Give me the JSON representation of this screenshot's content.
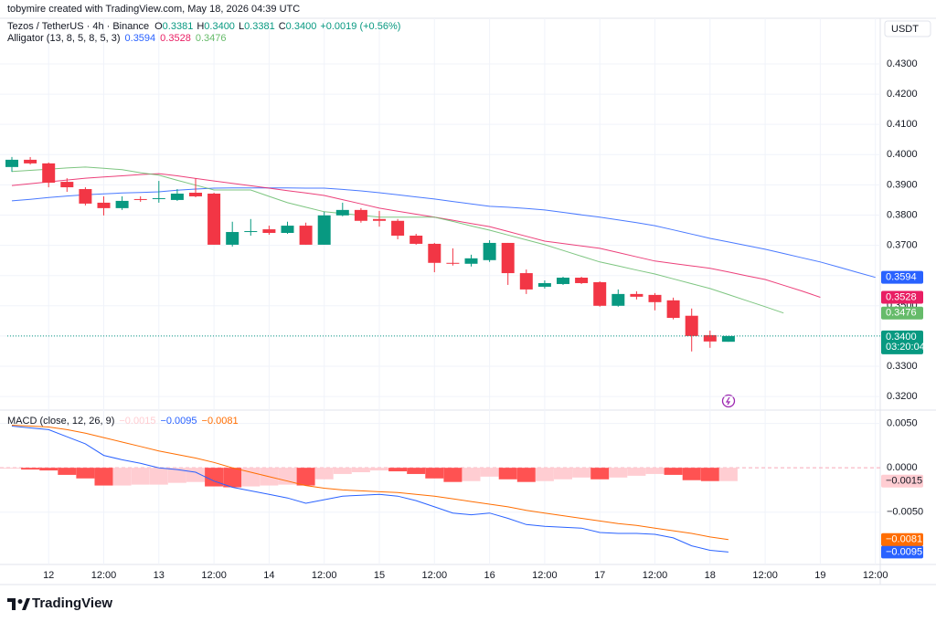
{
  "credit": "tobymire created with TradingView.com, May 18, 2026 04:39 UTC",
  "brand": "TradingView",
  "chart_data": [
    {
      "type": "candlestick",
      "title": "Tezos / TetherUS · 4h · Binance",
      "ohlc_legend": [
        {
          "label": "O",
          "value": "0.3381"
        },
        {
          "label": "H",
          "value": "0.3400"
        },
        {
          "label": "L",
          "value": "0.3381"
        },
        {
          "label": "C",
          "value": "0.3400"
        }
      ],
      "change": "+0.0019 (+0.56%)",
      "indicator": "Alligator (13, 8, 5, 8, 5, 3)",
      "currency": "USDT",
      "categories": [
        null,
        null,
        "12",
        null,
        null,
        "12:00",
        null,
        null,
        "13",
        null,
        null,
        "12:00",
        null,
        null,
        "14",
        null,
        null,
        "12:00",
        null,
        null,
        "15",
        null,
        null,
        "12:00",
        null,
        null,
        "16",
        null,
        null,
        "12:00",
        null,
        null,
        "17",
        null,
        null,
        "12:00",
        null,
        null,
        "18",
        null,
        null,
        "12:00",
        null,
        null,
        "19",
        null,
        null,
        "12:00"
      ],
      "open": [
        0.3959,
        0.3983,
        0.3971,
        0.391,
        0.3886,
        0.3841,
        0.3823,
        0.3853,
        0.3853,
        0.385,
        0.3874,
        0.3871,
        0.3702,
        0.3744,
        0.3753,
        0.3741,
        0.3765,
        0.3702,
        0.3799,
        0.3817,
        0.3787,
        0.3781,
        0.3732,
        0.3705,
        0.3642,
        0.3639,
        0.3651,
        0.3708,
        0.3608,
        0.3563,
        0.3572,
        0.3593,
        0.3578,
        0.35,
        0.3539,
        0.3536,
        0.3518,
        0.3467,
        0.3403,
        0.3381,
        null,
        null,
        null,
        null,
        null,
        null,
        null,
        null
      ],
      "high": [
        0.3992,
        0.3992,
        0.3974,
        0.3922,
        0.3892,
        0.3862,
        0.3862,
        0.3862,
        0.3913,
        0.3886,
        0.3922,
        0.3874,
        0.3778,
        0.3787,
        0.3765,
        0.3778,
        0.3775,
        0.3811,
        0.3841,
        0.3823,
        0.3814,
        0.3787,
        0.3738,
        0.3708,
        0.369,
        0.3669,
        0.3717,
        0.3708,
        0.362,
        0.3584,
        0.3596,
        0.3596,
        0.3581,
        0.3554,
        0.3548,
        0.3542,
        0.3527,
        0.3491,
        0.3418,
        0.34,
        null,
        null,
        null,
        null,
        null,
        null,
        null,
        null
      ],
      "low": [
        0.3943,
        0.3967,
        0.3892,
        0.3877,
        0.3832,
        0.3799,
        0.3817,
        0.3844,
        0.3841,
        0.3847,
        0.3859,
        0.3702,
        0.3696,
        0.3732,
        0.3735,
        0.3738,
        0.3702,
        0.3702,
        0.3796,
        0.3775,
        0.3762,
        0.372,
        0.3702,
        0.3611,
        0.3633,
        0.363,
        0.3645,
        0.3569,
        0.3539,
        0.3557,
        0.3569,
        0.3572,
        0.3497,
        0.3497,
        0.3521,
        0.3485,
        0.3455,
        0.3349,
        0.3361,
        0.3381,
        null,
        null,
        null,
        null,
        null,
        null,
        null,
        null
      ],
      "close": [
        0.3983,
        0.3971,
        0.3907,
        0.3892,
        0.3838,
        0.3823,
        0.3847,
        0.385,
        0.3856,
        0.3871,
        0.3862,
        0.3702,
        0.3744,
        0.3747,
        0.3741,
        0.3765,
        0.3702,
        0.3799,
        0.3817,
        0.3781,
        0.3781,
        0.3732,
        0.3705,
        0.3642,
        0.3639,
        0.3657,
        0.3708,
        0.3608,
        0.3554,
        0.3575,
        0.3593,
        0.3575,
        0.35,
        0.3539,
        0.353,
        0.3512,
        0.346,
        0.34,
        0.3382,
        0.34,
        null,
        null,
        null,
        null,
        null,
        null,
        null,
        null
      ],
      "up_color": "#089981",
      "down_color": "#f23645",
      "last_price_label": "0.3400",
      "countdown": "03:20:04",
      "series": [
        {
          "color": "#2962ff",
          "last_label": "0.3594",
          "values": [
            0.3847,
            0.3852,
            0.3858,
            0.3863,
            0.3867,
            0.387,
            0.3873,
            0.3875,
            0.3877,
            0.3882,
            0.3886,
            0.3889,
            0.389,
            0.389,
            0.389,
            0.389,
            0.3889,
            0.3889,
            0.3885,
            0.388,
            0.3874,
            0.3867,
            0.386,
            0.3853,
            0.3845,
            0.3837,
            0.3829,
            0.3826,
            0.3822,
            0.3817,
            0.3809,
            0.3801,
            0.3793,
            0.3784,
            0.3775,
            0.3765,
            0.3751,
            0.3737,
            0.3723,
            0.3711,
            0.3699,
            0.3687,
            0.3673,
            0.3659,
            0.3645,
            0.3628,
            0.3611,
            0.3594
          ]
        },
        {
          "color": "#e91e63",
          "last_label": "0.3528",
          "values": [
            0.3898,
            0.3904,
            0.391,
            0.3916,
            0.3922,
            0.3926,
            0.393,
            0.3934,
            0.3937,
            0.393,
            0.3921,
            0.3913,
            0.3905,
            0.3897,
            0.3889,
            0.3881,
            0.3873,
            0.3865,
            0.3851,
            0.3837,
            0.3823,
            0.3813,
            0.3803,
            0.3793,
            0.3783,
            0.3772,
            0.3762,
            0.3746,
            0.373,
            0.3714,
            0.3706,
            0.3698,
            0.369,
            0.3676,
            0.3662,
            0.3648,
            0.364,
            0.3632,
            0.3624,
            0.3612,
            0.3599,
            0.3587,
            0.3568,
            0.3549,
            0.3528,
            null,
            null,
            null
          ]
        },
        {
          "color": "#66bb6a",
          "last_label": "0.3476",
          "values": [
            0.3944,
            0.3948,
            0.3952,
            0.3956,
            0.3959,
            0.3955,
            0.395,
            0.394,
            0.3932,
            0.3915,
            0.3899,
            0.3883,
            0.3883,
            0.3883,
            0.3862,
            0.3841,
            0.3826,
            0.3811,
            0.3805,
            0.3799,
            0.3793,
            0.3793,
            0.3793,
            0.3793,
            0.3779,
            0.3764,
            0.375,
            0.3734,
            0.3718,
            0.3702,
            0.3683,
            0.3664,
            0.3645,
            0.3632,
            0.3618,
            0.3605,
            0.3589,
            0.3573,
            0.3557,
            0.3537,
            0.3517,
            0.3497,
            0.3476,
            null,
            null,
            null,
            null,
            null
          ]
        }
      ],
      "ylim": [
        0.3158,
        0.4451
      ],
      "yticks": [
        {
          "value": 0.32,
          "label": "0.3200"
        },
        {
          "value": 0.33,
          "label": "0.3300"
        },
        {
          "value": 0.34,
          "label": "0.3400"
        },
        {
          "value": 0.35,
          "label": "0.3500"
        },
        {
          "value": 0.36,
          "label": "0.3600"
        },
        {
          "value": 0.37,
          "label": "0.3700"
        },
        {
          "value": 0.38,
          "label": "0.3800"
        },
        {
          "value": 0.39,
          "label": "0.3900"
        },
        {
          "value": 0.4,
          "label": "0.4000"
        },
        {
          "value": 0.41,
          "label": "0.4100"
        },
        {
          "value": 0.42,
          "label": "0.4200"
        },
        {
          "value": 0.43,
          "label": "0.4300"
        }
      ],
      "grid": true
    },
    {
      "type": "macd",
      "title": "MACD (close, 12, 26, 9)",
      "histogram": {
        "rising_color": "#ffcdd2",
        "falling_color": "#ff5252",
        "last_label": "−0.0015",
        "values": [
          -0.0001,
          -0.0002,
          -0.0003,
          -0.0008,
          -0.0012,
          -0.002,
          -0.002,
          -0.0019,
          -0.0019,
          -0.0017,
          -0.0016,
          -0.0021,
          -0.0022,
          -0.0021,
          -0.002,
          -0.0019,
          -0.002,
          -0.0013,
          -0.0007,
          -0.0005,
          -0.0003,
          -0.0004,
          -0.0007,
          -0.0012,
          -0.0016,
          -0.0015,
          -0.001,
          -0.0013,
          -0.0016,
          -0.0015,
          -0.0013,
          -0.0011,
          -0.0013,
          -0.0011,
          -0.0009,
          -0.0007,
          -0.0008,
          -0.0014,
          -0.0015,
          -0.0015
        ]
      },
      "series": [
        {
          "color": "#2962ff",
          "last_label": "−0.0095",
          "values": [
            0.0047,
            0.0045,
            0.0043,
            0.0035,
            0.0027,
            0.0014,
            0.0009,
            0.0005,
            0.0,
            -0.0002,
            -0.0005,
            -0.0015,
            -0.0022,
            -0.0026,
            -0.003,
            -0.0034,
            -0.004,
            -0.0036,
            -0.0032,
            -0.0031,
            -0.003,
            -0.0032,
            -0.0037,
            -0.0044,
            -0.0051,
            -0.0053,
            -0.0051,
            -0.0057,
            -0.0064,
            -0.0066,
            -0.0067,
            -0.0068,
            -0.0073,
            -0.0074,
            -0.0074,
            -0.0075,
            -0.0079,
            -0.0088,
            -0.0093,
            -0.0095
          ]
        },
        {
          "color": "#ff6d00",
          "last_label": "−0.0081",
          "values": [
            0.0048,
            0.0047,
            0.0046,
            0.0043,
            0.0039,
            0.0034,
            0.0029,
            0.0024,
            0.0019,
            0.0015,
            0.0011,
            0.0006,
            0.0,
            -0.0005,
            -0.001,
            -0.0015,
            -0.002,
            -0.0023,
            -0.0025,
            -0.0026,
            -0.0027,
            -0.0028,
            -0.003,
            -0.0032,
            -0.0035,
            -0.0038,
            -0.0041,
            -0.0044,
            -0.0048,
            -0.0051,
            -0.0054,
            -0.0057,
            -0.006,
            -0.0063,
            -0.0065,
            -0.0068,
            -0.0071,
            -0.0074,
            -0.0078,
            -0.0081
          ]
        }
      ],
      "ylim": [
        -0.0109,
        0.0064
      ],
      "yticks": [
        {
          "value": 0.005,
          "label": "0.0050"
        },
        {
          "value": 0,
          "label": "0.0000"
        },
        {
          "value": -0.005,
          "label": "−0.0050"
        }
      ],
      "grid": true
    }
  ]
}
